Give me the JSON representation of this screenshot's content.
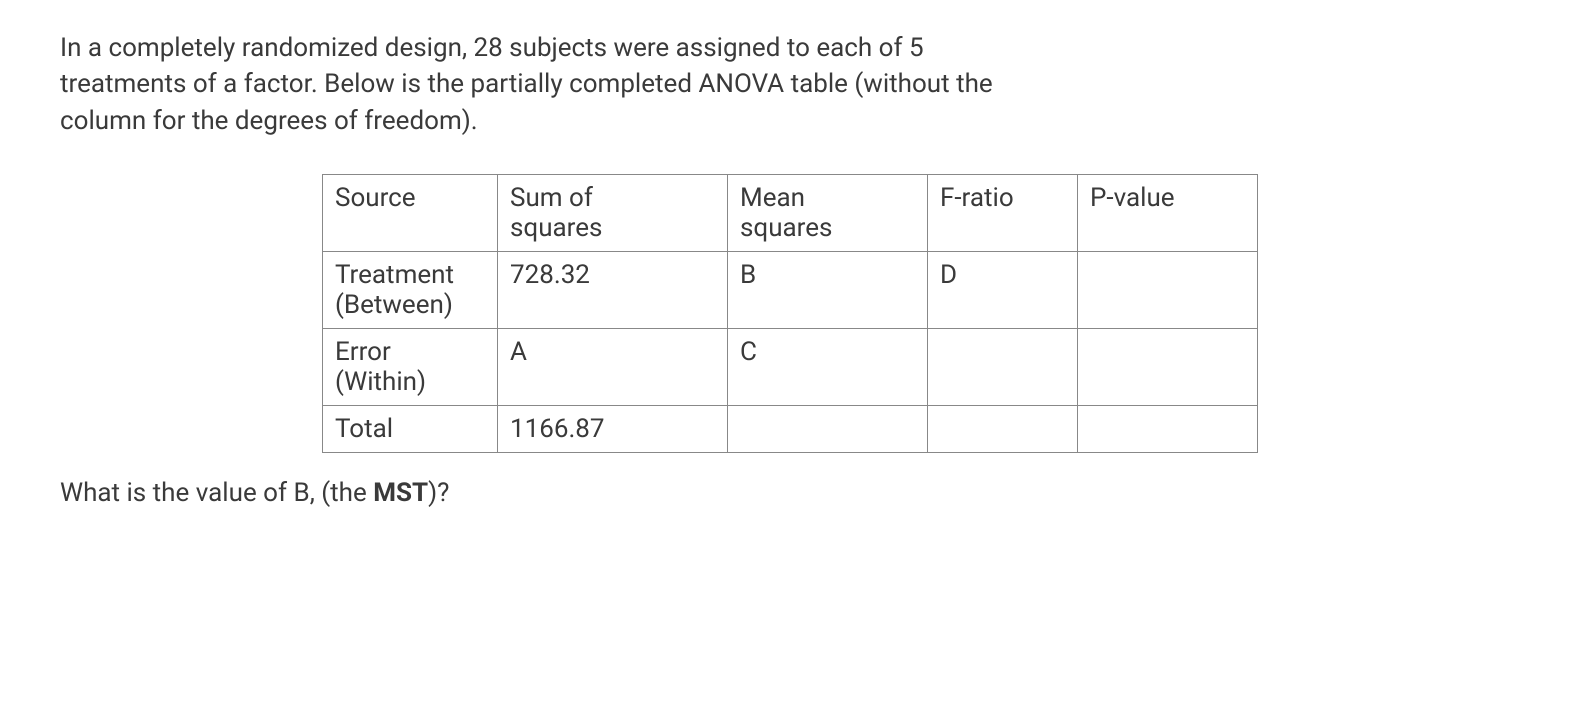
{
  "intro": {
    "line1": "In a completely randomized design, 28 subjects were assigned to each of 5",
    "line2": "treatments of a factor. Below is the partially completed ANOVA table (without the",
    "line3": "column for the degrees of freedom)."
  },
  "table": {
    "headers": {
      "source": "Source",
      "ss_line1": "Sum of",
      "ss_line2": "squares",
      "ms_line1": "Mean",
      "ms_line2": "squares",
      "f": "F-ratio",
      "p": "P-value"
    },
    "rows": {
      "treatment": {
        "label_line1": "Treatment",
        "label_line2": "(Between)",
        "ss": "728.32",
        "ms": "B",
        "f": "D",
        "p": ""
      },
      "error": {
        "label_line1": "Error",
        "label_line2": "(Within)",
        "ss": "A",
        "ms": "C",
        "f": "",
        "p": ""
      },
      "total": {
        "label": "Total",
        "ss": "1166.87",
        "ms": "",
        "f": "",
        "p": ""
      }
    }
  },
  "question": {
    "prefix": "What is the value of B, (the ",
    "bold": "MST",
    "suffix": ")?"
  }
}
